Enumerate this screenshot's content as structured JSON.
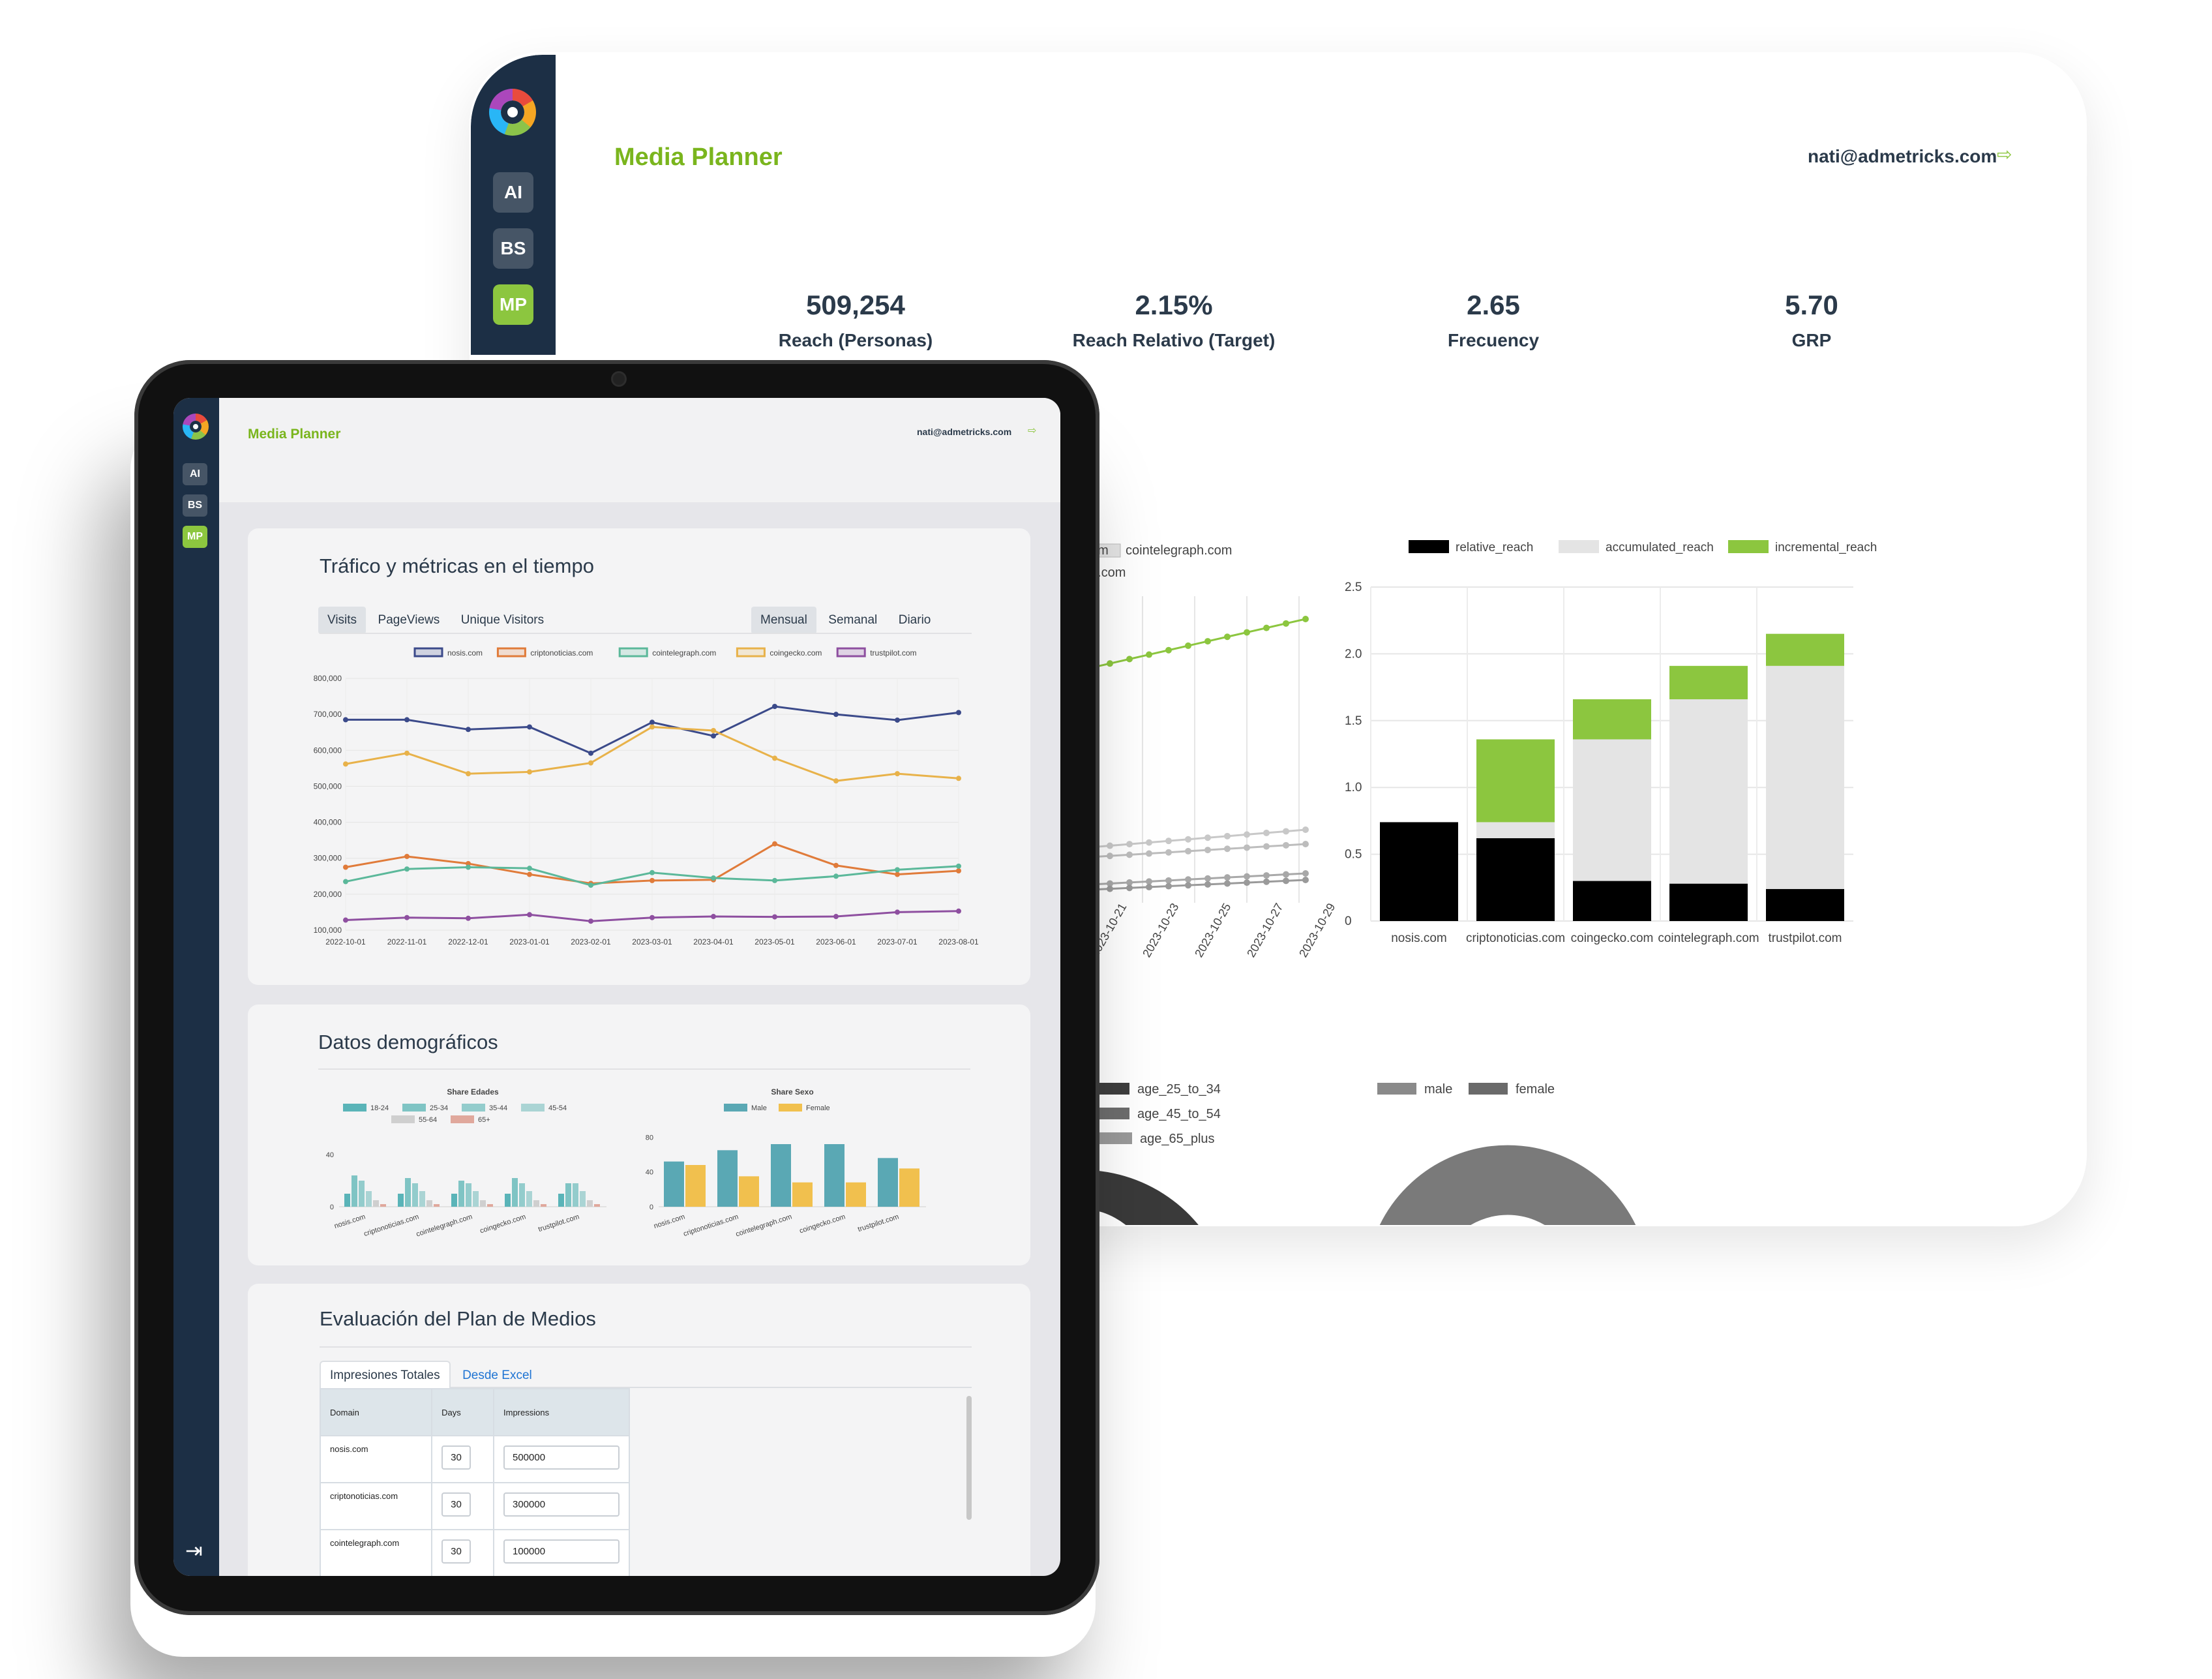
{
  "desktop": {
    "app_title": "Media Planner",
    "user_email": "nati@admetricks.com",
    "sidebar": [
      "AI",
      "BS",
      "MP"
    ],
    "kpis": [
      {
        "value": "509,254",
        "label": "Reach (Personas)"
      },
      {
        "value": "2.15%",
        "label": "Reach Relativo (Target)"
      },
      {
        "value": "2.65",
        "label": "Frecuency"
      },
      {
        "value": "5.70",
        "label": "GRP"
      }
    ],
    "line_legend_partial": [
      "com",
      "cointelegraph.com",
      "lot.com"
    ],
    "line_x_labels": [
      "2023-10-21",
      "2023-10-23",
      "2023-10-25",
      "2023-10-27",
      "2023-10-29"
    ],
    "donut_legend_age": [
      "age_25_to_34",
      "age_45_to_54",
      "age_65_plus"
    ],
    "donut_legend_sex": [
      "male",
      "female"
    ]
  },
  "tablet": {
    "app_title": "Media Planner",
    "user_email": "nati@admetricks.com",
    "sidebar": [
      "AI",
      "BS",
      "MP"
    ],
    "traffic": {
      "title": "Tráfico y métricas en el tiempo",
      "metric_tabs": [
        "Visits",
        "PageViews",
        "Unique Visitors"
      ],
      "period_tabs": [
        "Mensual",
        "Semanal",
        "Diario"
      ]
    },
    "demo": {
      "title": "Datos demográficos",
      "age_title": "Share Edades",
      "sex_title": "Share Sexo"
    },
    "plan": {
      "title": "Evaluación del Plan de Medios",
      "tabs": [
        "Impresiones Totales",
        "Desde Excel"
      ],
      "headers": [
        "Domain",
        "Days",
        "Impressions"
      ],
      "rows": [
        {
          "domain": "nosis.com",
          "days": "30",
          "impressions": "500000"
        },
        {
          "domain": "criptonoticias.com",
          "days": "30",
          "impressions": "300000"
        },
        {
          "domain": "cointelegraph.com",
          "days": "30",
          "impressions": "100000"
        }
      ]
    }
  },
  "chart_data": [
    {
      "type": "line",
      "x": [
        "2022-10-01",
        "2022-11-01",
        "2022-12-01",
        "2023-01-01",
        "2023-02-01",
        "2023-03-01",
        "2023-04-01",
        "2023-05-01",
        "2023-06-01",
        "2023-07-01",
        "2023-08-01"
      ],
      "ylim": [
        100000,
        800000
      ],
      "yticks": [
        "800,000",
        "700,000",
        "600,000",
        "500,000",
        "400,000",
        "300,000",
        "200,000",
        "100,000"
      ],
      "colors": [
        "#3b4a8a",
        "#e07b3a",
        "#5bb89a",
        "#e8b24a",
        "#8e4fa0"
      ],
      "series": [
        {
          "name": "nosis.com",
          "values": [
            685000,
            685000,
            658000,
            665000,
            592000,
            678000,
            640000,
            722000,
            700000,
            684000,
            705000
          ]
        },
        {
          "name": "criptonoticias.com",
          "values": [
            275000,
            305000,
            285000,
            255000,
            230000,
            238000,
            240000,
            340000,
            280000,
            255000,
            265000
          ]
        },
        {
          "name": "cointelegraph.com",
          "values": [
            235000,
            270000,
            275000,
            272000,
            225000,
            260000,
            245000,
            238000,
            250000,
            268000,
            278000
          ]
        },
        {
          "name": "coingecko.com",
          "values": [
            562000,
            592000,
            535000,
            540000,
            565000,
            665000,
            655000,
            578000,
            515000,
            535000,
            522000
          ]
        },
        {
          "name": "trustpilot.com",
          "values": [
            128000,
            135000,
            133000,
            143000,
            125000,
            135000,
            138000,
            137000,
            138000,
            150000,
            153000
          ]
        }
      ]
    },
    {
      "type": "bar",
      "stacked": true,
      "categories": [
        "nosis.com",
        "criptonoticias.com",
        "coingecko.com",
        "cointelegraph.com",
        "trustpilot.com"
      ],
      "ylim": [
        0,
        2.5
      ],
      "yticks": [
        "2.5",
        "2.0",
        "1.5",
        "1.0",
        "0.5",
        "0"
      ],
      "colors": [
        "#000000",
        "#e4e4e4",
        "#8cc63f"
      ],
      "series": [
        {
          "name": "relative_reach",
          "values": [
            0.74,
            0.62,
            0.3,
            0.28,
            0.24
          ]
        },
        {
          "name": "accumulated_reach",
          "values": [
            0,
            0.12,
            1.06,
            1.38,
            1.67
          ]
        },
        {
          "name": "incremental_reach",
          "values": [
            0,
            0.62,
            0.3,
            0.25,
            0.24
          ]
        }
      ]
    },
    {
      "type": "bar",
      "title": "Share Edades",
      "categories": [
        "nosis.com",
        "criptonoticias.com",
        "cointelegraph.com",
        "coingecko.com",
        "trustpilot.com"
      ],
      "yticks": [
        "40",
        "0"
      ],
      "ylim": [
        0,
        60
      ],
      "colors": [
        "#5ab4b8",
        "#7fc4c4",
        "#93cccc",
        "#aad4d4",
        "#cfcfcf",
        "#e0a89c"
      ],
      "series": [
        {
          "name": "18-24",
          "values": [
            10,
            10,
            10,
            10,
            10
          ]
        },
        {
          "name": "25-34",
          "values": [
            24,
            22,
            20,
            22,
            18
          ]
        },
        {
          "name": "35-44",
          "values": [
            20,
            18,
            18,
            18,
            18
          ]
        },
        {
          "name": "45-54",
          "values": [
            12,
            12,
            12,
            12,
            12
          ]
        },
        {
          "name": "55-64",
          "values": [
            5,
            5,
            5,
            5,
            5
          ]
        },
        {
          "name": "65+",
          "values": [
            2,
            2,
            2,
            2,
            2
          ]
        }
      ]
    },
    {
      "type": "bar",
      "title": "Share Sexo",
      "categories": [
        "nosis.com",
        "criptonoticias.com",
        "cointelegraph.com",
        "coingecko.com",
        "trustpilot.com"
      ],
      "yticks": [
        "80",
        "40",
        "0"
      ],
      "ylim": [
        0,
        90
      ],
      "colors": [
        "#5aa8b4",
        "#f1c04e"
      ],
      "series": [
        {
          "name": "Male",
          "values": [
            52,
            65,
            72,
            72,
            56
          ]
        },
        {
          "name": "Female",
          "values": [
            48,
            35,
            28,
            28,
            44
          ]
        }
      ]
    },
    {
      "type": "pie",
      "donut": true,
      "legend": [
        "male",
        "female"
      ],
      "values": [
        50,
        50
      ],
      "colors": [
        "#7a7a7a",
        "#9b9b9b"
      ]
    }
  ]
}
